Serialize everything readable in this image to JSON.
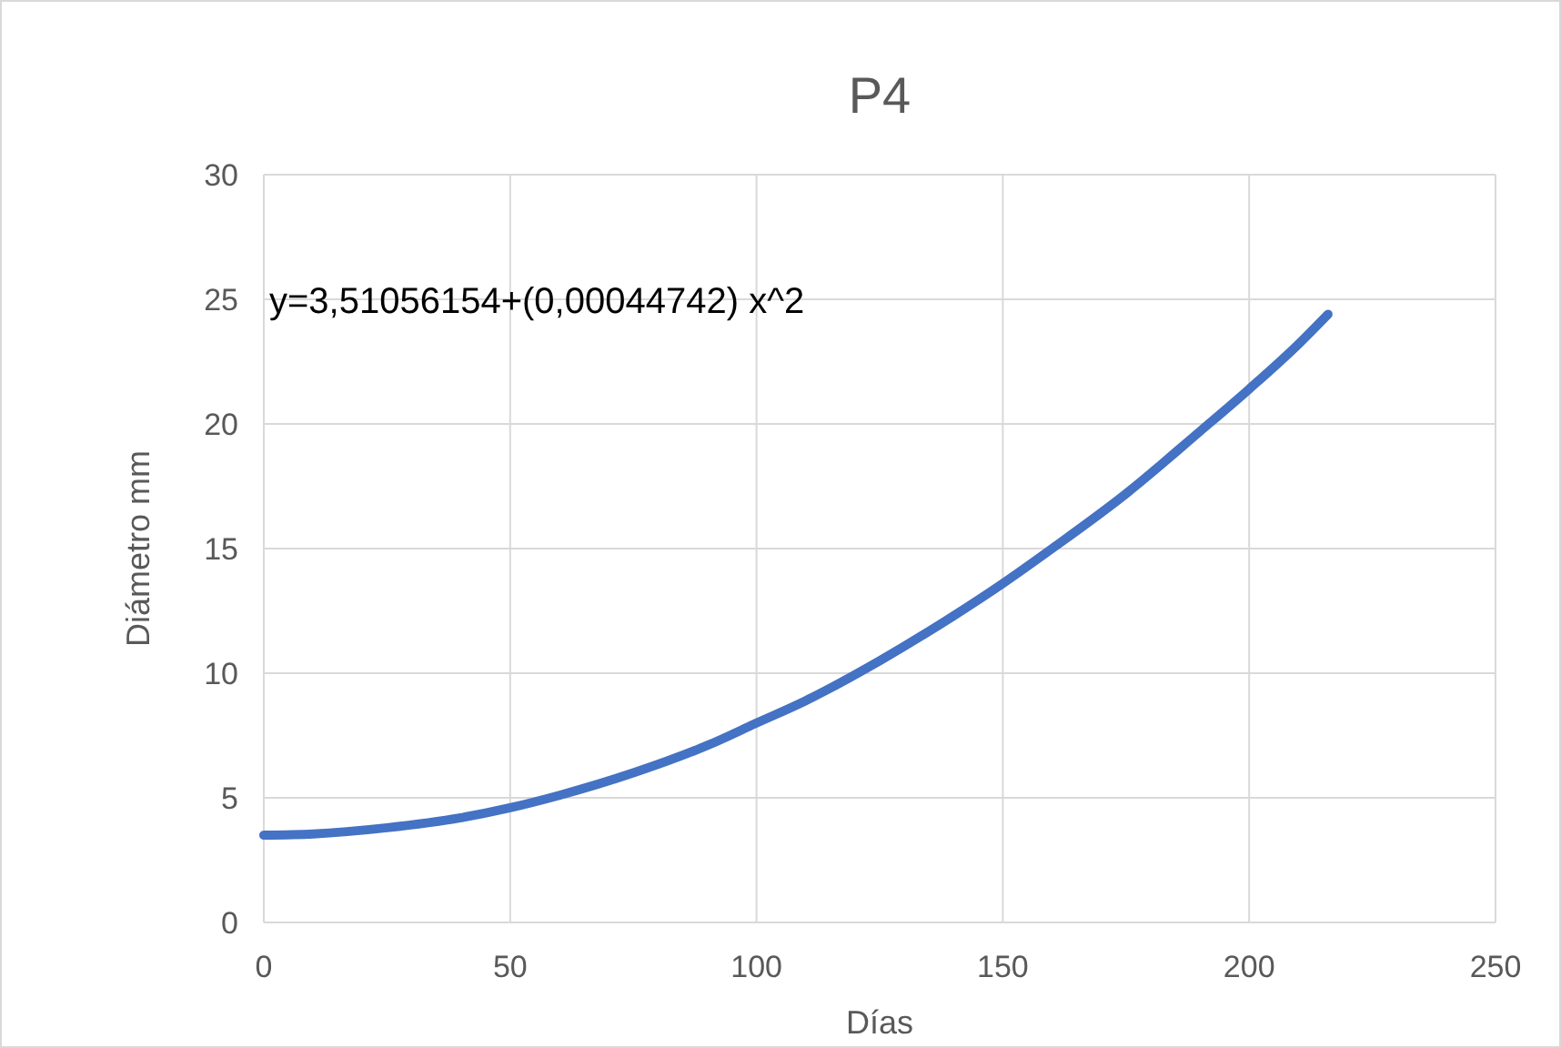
{
  "chart_data": {
    "type": "line",
    "title": "P4",
    "xlabel": "Días",
    "ylabel": "Diámetro mm",
    "annotations": [
      "y=3,51056154+(0,00044742) x^2"
    ],
    "x": [
      0,
      10,
      25,
      40,
      50,
      60,
      75,
      90,
      100,
      110,
      125,
      140,
      150,
      160,
      175,
      190,
      200,
      210,
      216
    ],
    "series": [
      {
        "color": "#4472c4",
        "values": [
          3.5,
          3.55,
          3.8,
          4.2,
          4.6,
          5.1,
          6.0,
          7.1,
          8.0,
          8.9,
          10.5,
          12.3,
          13.6,
          15.0,
          17.2,
          19.7,
          21.4,
          23.2,
          24.4
        ]
      }
    ],
    "xlim": [
      0,
      250
    ],
    "xticks": [
      0,
      50,
      100,
      150,
      200,
      250
    ],
    "ylim": [
      0,
      30
    ],
    "yticks": [
      0,
      5,
      10,
      15,
      20,
      25,
      30
    ],
    "grid": true,
    "marker": "none",
    "line_style": "solid"
  }
}
